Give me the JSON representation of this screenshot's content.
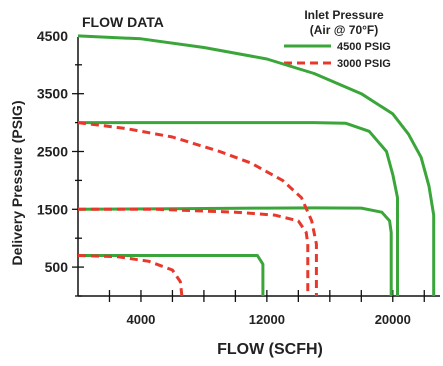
{
  "chart_data": {
    "type": "line",
    "title": "FLOW DATA",
    "xlabel": "FLOW (SCFH)",
    "ylabel": "Delivery Pressure (PSIG)",
    "xlim": [
      0,
      23000
    ],
    "ylim": [
      0,
      5000
    ],
    "x_ticks": [
      4000,
      12000,
      20000
    ],
    "y_ticks": [
      500,
      1500,
      2500,
      3500,
      4500
    ],
    "grid": false,
    "legend": {
      "title_line1": "Inlet Pressure",
      "title_line2": "(Air @ 70°F)",
      "placement": "top-right"
    },
    "series": [
      {
        "name": "4500 PSIG",
        "color": "#3aa63a",
        "style": "solid",
        "curves": [
          {
            "x": [
              0,
              4000,
              8000,
              12000,
              15000,
              18000,
              20000,
              21000,
              21800,
              22300,
              22600,
              22600
            ],
            "y": [
              4500,
              4450,
              4300,
              4100,
              3850,
              3500,
              3150,
              2800,
              2400,
              1900,
              1400,
              0
            ]
          },
          {
            "x": [
              0,
              6000,
              12000,
              15000,
              17000,
              18500,
              19600,
              20000,
              20300,
              20300
            ],
            "y": [
              3000,
              3000,
              3000,
              3000,
              2990,
              2850,
              2500,
              2100,
              1700,
              0
            ]
          },
          {
            "x": [
              0,
              6000,
              12000,
              15000,
              18000,
              19300,
              19800,
              19900,
              19900
            ],
            "y": [
              1500,
              1510,
              1520,
              1525,
              1520,
              1450,
              1300,
              1100,
              0
            ]
          },
          {
            "x": [
              0,
              4000,
              8000,
              11400,
              11750,
              11750
            ],
            "y": [
              700,
              700,
              700,
              700,
              550,
              0
            ]
          }
        ]
      },
      {
        "name": "3000 PSIG",
        "color": "#e8382c",
        "style": "dashed",
        "curves": [
          {
            "x": [
              0,
              3000,
              6000,
              9000,
              11000,
              13000,
              14200,
              14850,
              15150,
              15150
            ],
            "y": [
              3000,
              2900,
              2750,
              2500,
              2300,
              2000,
              1700,
              1300,
              900,
              0
            ]
          },
          {
            "x": [
              0,
              5000,
              10000,
              12500,
              14000,
              14500,
              14600,
              14600
            ],
            "y": [
              1500,
              1500,
              1450,
              1400,
              1300,
              1100,
              900,
              0
            ]
          },
          {
            "x": [
              0,
              2500,
              4500,
              6000,
              6500,
              6600
            ],
            "y": [
              700,
              680,
              600,
              450,
              250,
              0
            ]
          }
        ]
      }
    ]
  }
}
